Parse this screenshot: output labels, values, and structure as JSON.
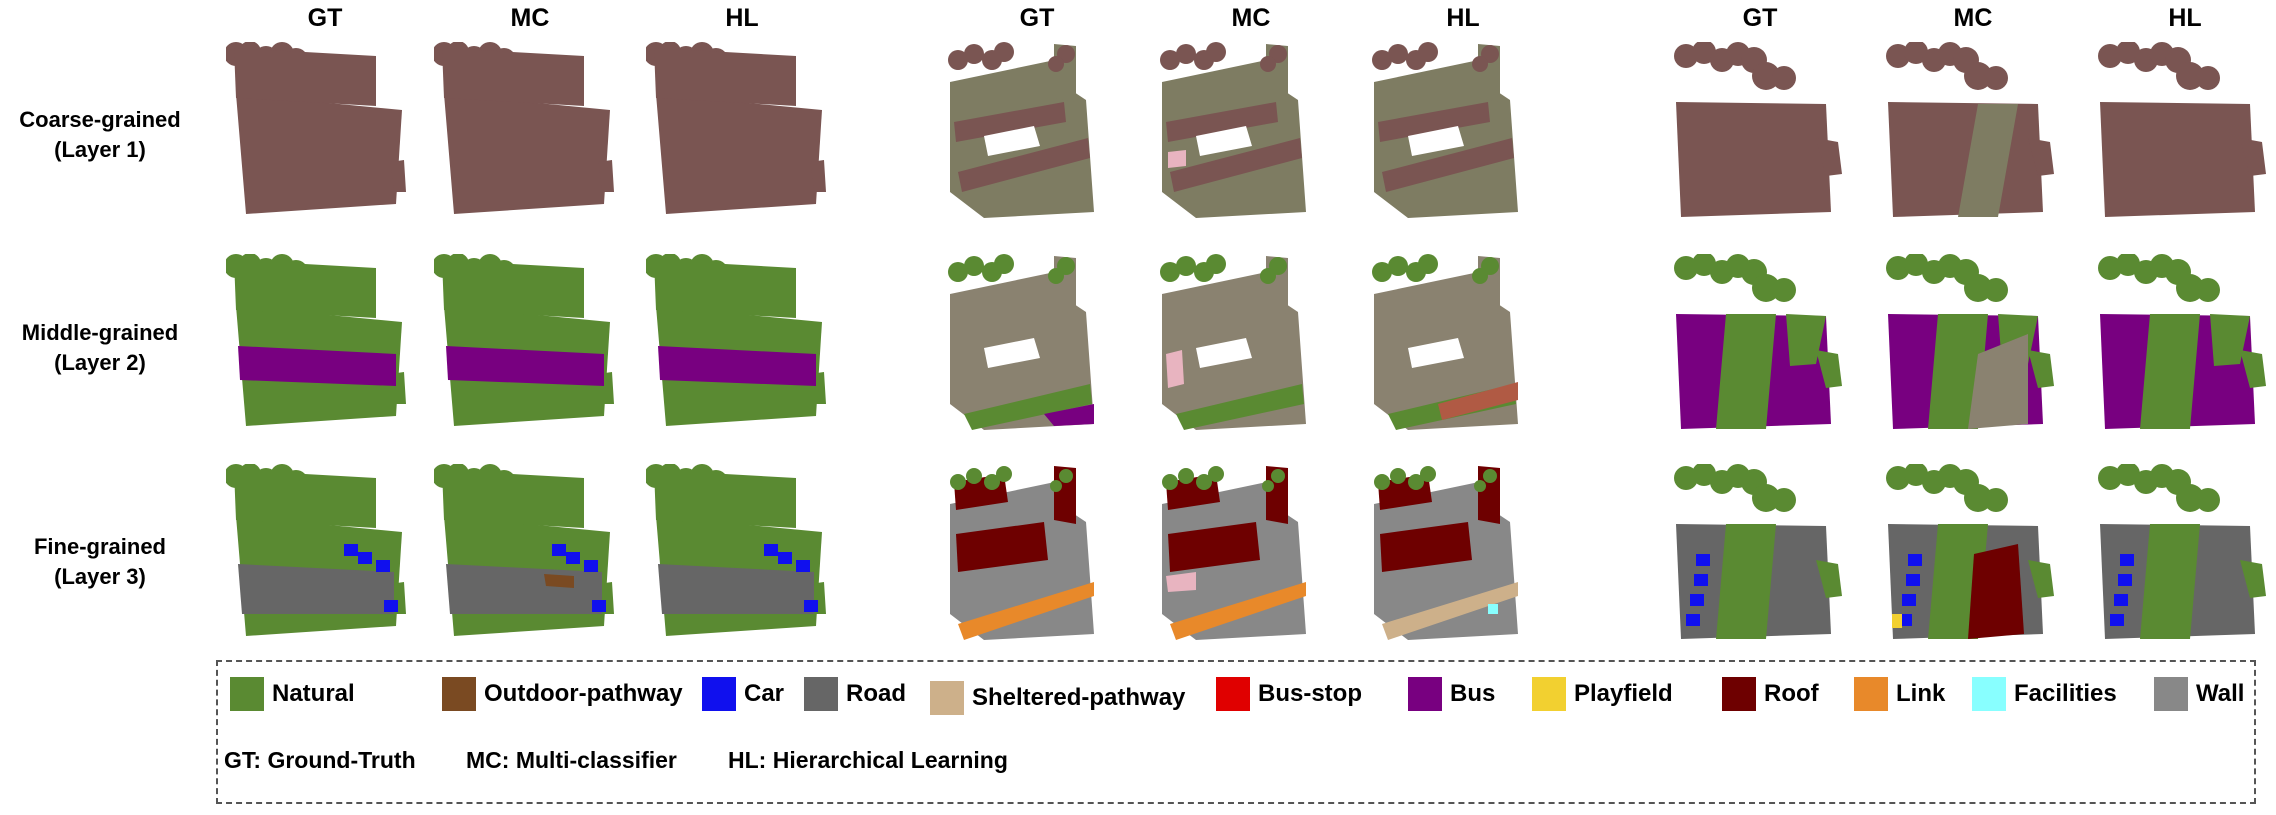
{
  "column_headers": [
    "GT",
    "MC",
    "HL",
    "GT",
    "MC",
    "HL",
    "GT",
    "MC",
    "HL"
  ],
  "row_labels": [
    {
      "line1": "Coarse-grained",
      "line2": "(Layer 1)"
    },
    {
      "line1": "Middle-grained",
      "line2": "(Layer 2)"
    },
    {
      "line1": "Fine-grained",
      "line2": "(Layer 3)"
    }
  ],
  "legend": {
    "items": [
      {
        "label": "Natural",
        "color": "#5a8a32"
      },
      {
        "label": "Outdoor-pathway",
        "color": "#7a4a22"
      },
      {
        "label": "Car",
        "color": "#1010ee"
      },
      {
        "label": "Road",
        "color": "#666666"
      },
      {
        "label": "Sheltered-pathway",
        "color": "#cdb08a"
      },
      {
        "label": "Bus-stop",
        "color": "#e00000"
      },
      {
        "label": "Bus",
        "color": "#780080"
      },
      {
        "label": "Playfield",
        "color": "#f2d030"
      },
      {
        "label": "Roof",
        "color": "#6e0000"
      },
      {
        "label": "Link",
        "color": "#e8892a"
      },
      {
        "label": "Facilities",
        "color": "#88ffff"
      },
      {
        "label": "Wall",
        "color": "#888888"
      }
    ],
    "abbreviations": [
      "GT: Ground-Truth",
      "MC: Multi-classifier",
      "HL: Hierarchical Learning"
    ]
  },
  "colors": {
    "coarse_ground": "#7a5552",
    "coarse_terrain": "#7e7c62",
    "middle_built": "#8a8270",
    "pink_noise": "#e8b4c0",
    "background": "#ffffff"
  }
}
